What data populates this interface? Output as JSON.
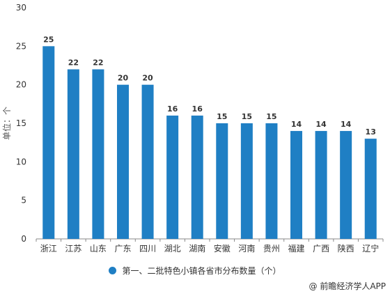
{
  "chart_data": {
    "type": "bar",
    "categories": [
      "浙江",
      "江苏",
      "山东",
      "广东",
      "四川",
      "湖北",
      "湖南",
      "安徽",
      "河南",
      "贵州",
      "福建",
      "广西",
      "陕西",
      "辽宁"
    ],
    "series": [
      {
        "name": "第一、二批特色小镇各省市分布数量（个）",
        "values": [
          25,
          22,
          22,
          20,
          20,
          16,
          16,
          15,
          15,
          15,
          14,
          14,
          14,
          13
        ]
      }
    ],
    "ylabel": "单位：个",
    "ylim": [
      0,
      30
    ],
    "yticks": [
      0,
      5,
      10,
      15,
      20,
      25,
      30
    ],
    "legend_position": "bottom",
    "grid": false,
    "color": "#1f7fc4"
  },
  "source": "@ 前瞻经济学人APP"
}
